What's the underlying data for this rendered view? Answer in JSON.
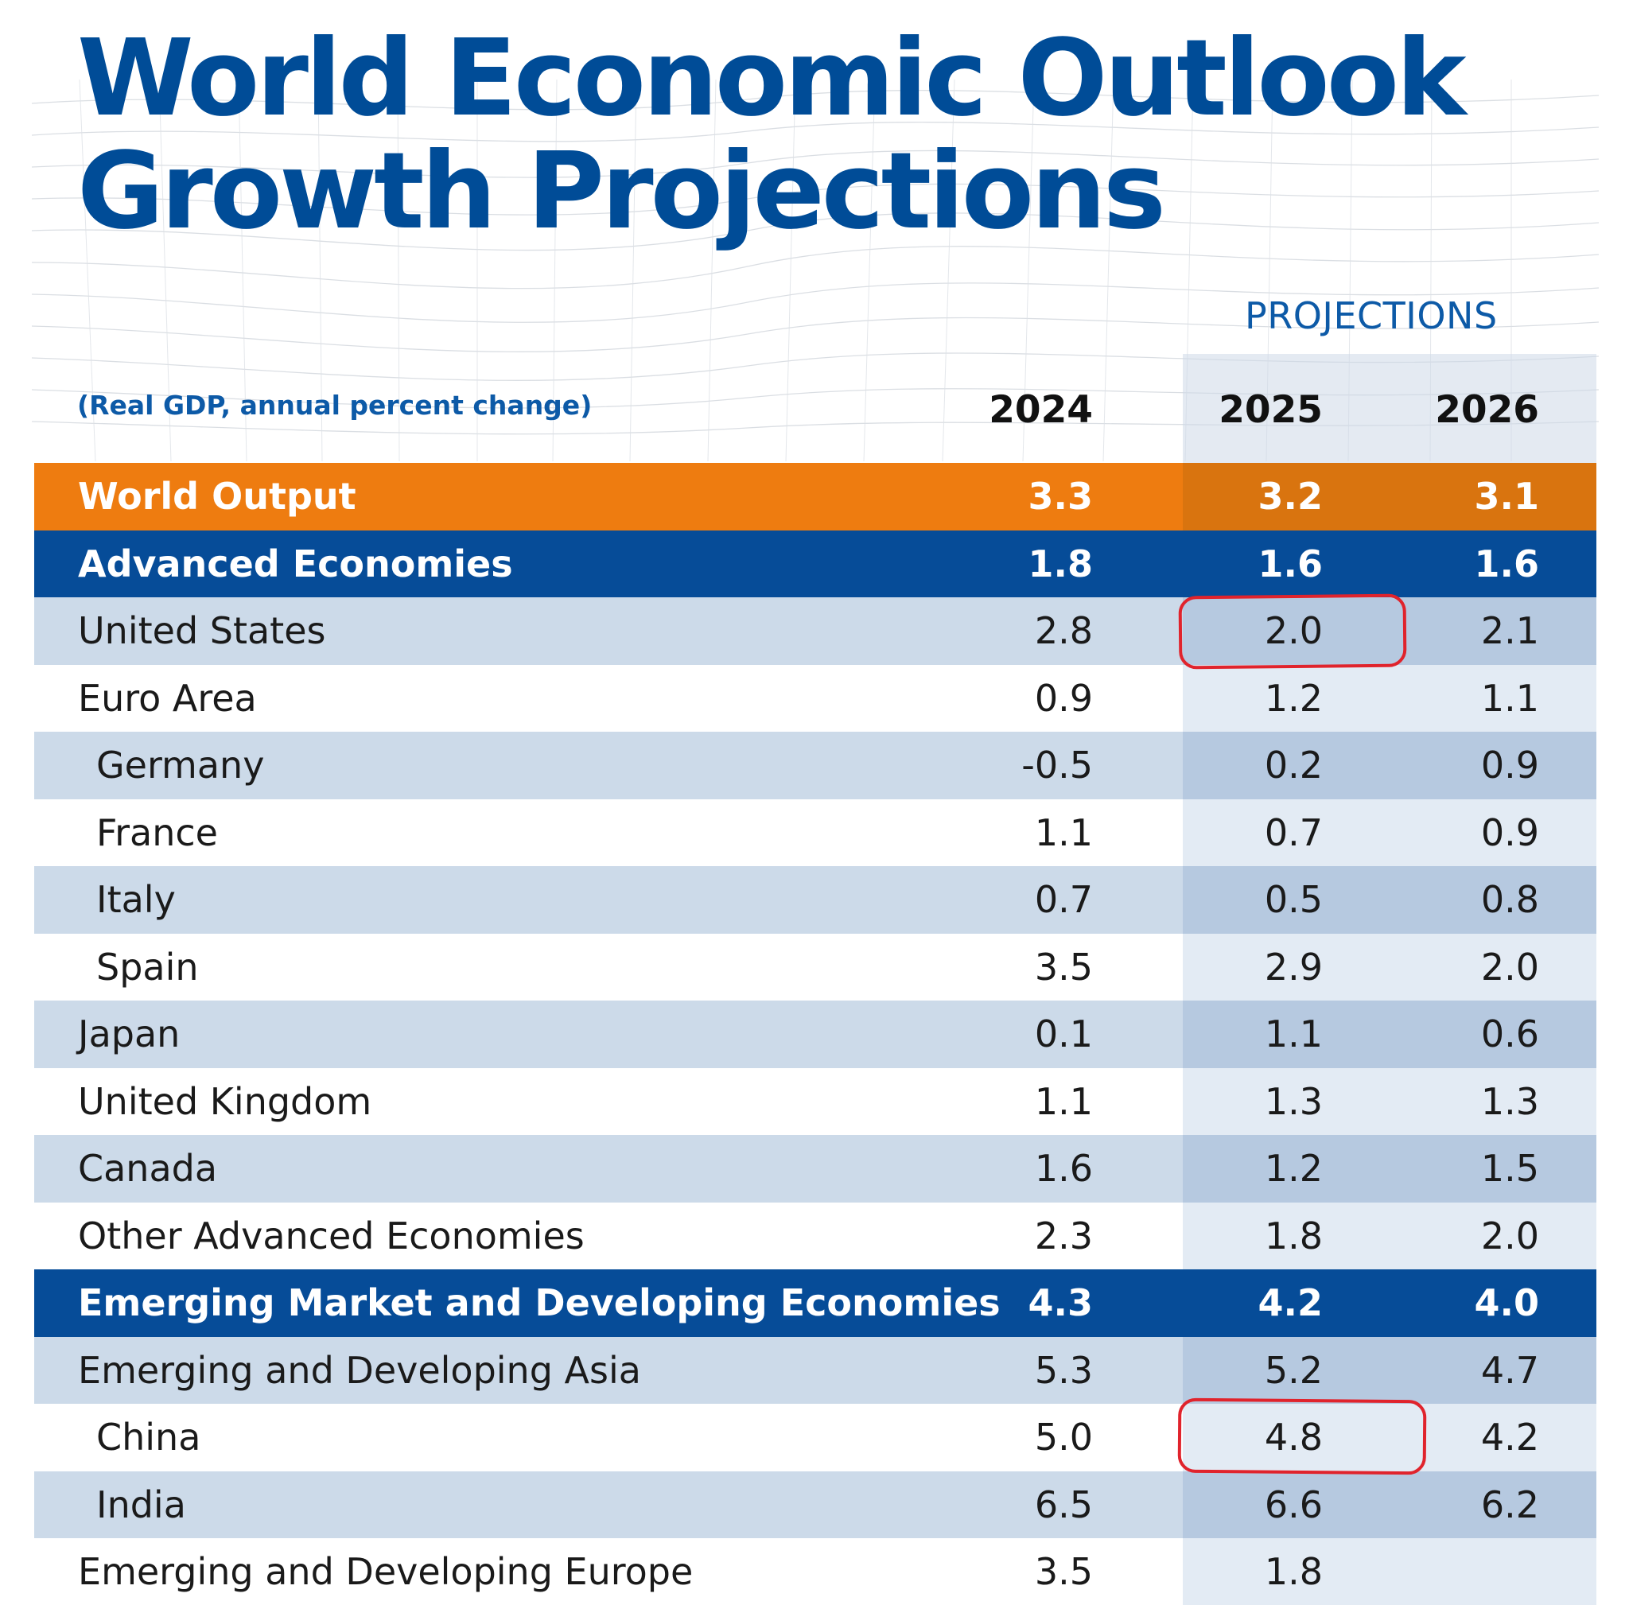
{
  "title": {
    "line1": "World Economic Outlook",
    "line2": "Growth Projections"
  },
  "projections_label": "PROJECTIONS",
  "unit_label": "(Real GDP, annual percent change)",
  "years": [
    "2024",
    "2025",
    "2026"
  ],
  "rows": [
    {
      "label": "World Output",
      "style": "orange",
      "values": [
        "3.3",
        "3.2",
        "3.1"
      ]
    },
    {
      "label": "Advanced Economies",
      "style": "blue",
      "values": [
        "1.8",
        "1.6",
        "1.6"
      ]
    },
    {
      "label": "United States",
      "style": "alt",
      "values": [
        "2.8",
        "2.0",
        "2.1"
      ],
      "highlight": "2025"
    },
    {
      "label": "Euro Area",
      "style": "plain",
      "values": [
        "0.9",
        "1.2",
        "1.1"
      ]
    },
    {
      "label": "Germany",
      "style": "alt",
      "indent": true,
      "values": [
        "-0.5",
        "0.2",
        "0.9"
      ]
    },
    {
      "label": "France",
      "style": "plain",
      "indent": true,
      "values": [
        "1.1",
        "0.7",
        "0.9"
      ]
    },
    {
      "label": "Italy",
      "style": "alt",
      "indent": true,
      "values": [
        "0.7",
        "0.5",
        "0.8"
      ]
    },
    {
      "label": "Spain",
      "style": "plain",
      "indent": true,
      "values": [
        "3.5",
        "2.9",
        "2.0"
      ]
    },
    {
      "label": "Japan",
      "style": "alt",
      "values": [
        "0.1",
        "1.1",
        "0.6"
      ]
    },
    {
      "label": "United Kingdom",
      "style": "plain",
      "values": [
        "1.1",
        "1.3",
        "1.3"
      ]
    },
    {
      "label": "Canada",
      "style": "alt",
      "values": [
        "1.6",
        "1.2",
        "1.5"
      ]
    },
    {
      "label": "Other Advanced Economies",
      "style": "plain",
      "values": [
        "2.3",
        "1.8",
        "2.0"
      ]
    },
    {
      "label": "Emerging Market and Developing Economies",
      "style": "blue",
      "values": [
        "4.3",
        "4.2",
        "4.0"
      ]
    },
    {
      "label": "Emerging and Developing Asia",
      "style": "alt",
      "values": [
        "5.3",
        "5.2",
        "4.7"
      ]
    },
    {
      "label": "China",
      "style": "plain",
      "indent": true,
      "values": [
        "5.0",
        "4.8",
        "4.2"
      ],
      "highlight": "2025"
    },
    {
      "label": "India",
      "style": "alt",
      "indent": true,
      "values": [
        "6.5",
        "6.6",
        "6.2"
      ]
    },
    {
      "label": "Emerging and Developing Europe",
      "style": "plain",
      "values": [
        "3.5",
        "1.8",
        ""
      ]
    }
  ],
  "colors": {
    "title": "#004c97",
    "orange_row": "#ee7c10",
    "blue_row": "#064c98",
    "highlight": "#e0232c"
  }
}
